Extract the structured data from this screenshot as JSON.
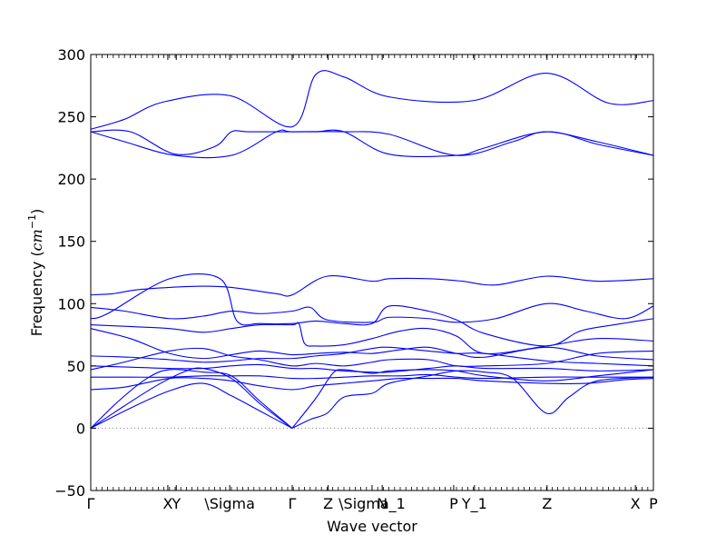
{
  "chart_data": {
    "type": "line",
    "xlabel": "Wave vector",
    "ylabel": "Frequency ($cm^{-1}$)",
    "ylabel_display": {
      "prefix": "Frequency (",
      "math": "cm",
      "sup": "−1",
      "suffix": ")"
    },
    "ylim": [
      -50,
      300
    ],
    "yticks": [
      -50,
      0,
      50,
      100,
      150,
      200,
      250,
      300
    ],
    "xlim": [
      0,
      1
    ],
    "xticks": [
      {
        "label": "Γ",
        "pos": 0.0
      },
      {
        "label": "X",
        "pos": 0.137
      },
      {
        "label": "Y",
        "pos": 0.152
      },
      {
        "label": "\\Sigma",
        "pos": 0.247
      },
      {
        "label": "Γ",
        "pos": 0.358
      },
      {
        "label": "Z",
        "pos": 0.422
      },
      {
        "label": "\\Sigma_1",
        "pos": 0.5
      },
      {
        "label": "N",
        "pos": 0.518
      },
      {
        "label": "P",
        "pos": 0.645
      },
      {
        "label": "Y_1",
        "pos": 0.682
      },
      {
        "label": "Z",
        "pos": 0.811
      },
      {
        "label": "X",
        "pos": 0.968
      },
      {
        "label": "P",
        "pos": 1.0
      }
    ],
    "grid": false,
    "legend": "none",
    "colors": {
      "bands": "#0000ff",
      "zero_line": "#808080"
    },
    "series": [
      {
        "x": [
          0,
          0.06,
          0.13,
          0.247,
          0.358,
          0.4,
          0.45,
          0.53,
          0.68,
          0.81,
          0.92,
          1.0
        ],
        "values": [
          240,
          248,
          262,
          267,
          242,
          284,
          282,
          266,
          263,
          285,
          261,
          263
        ]
      },
      {
        "x": [
          0,
          0.06,
          0.15,
          0.25,
          0.33,
          0.358,
          0.45,
          0.53,
          0.65,
          0.75,
          0.81,
          0.9,
          1.0
        ],
        "values": [
          238,
          230,
          219,
          219,
          238,
          238,
          238,
          236,
          219,
          230,
          238,
          230,
          219
        ]
      },
      {
        "x": [
          0,
          0.07,
          0.15,
          0.22,
          0.25,
          0.28,
          0.358,
          0.4,
          0.45,
          0.53,
          0.65,
          0.7,
          0.81,
          0.9,
          1.0
        ],
        "values": [
          238,
          238,
          220,
          226,
          238,
          238,
          238,
          238,
          238,
          220,
          219,
          225,
          238,
          228,
          219
        ]
      },
      {
        "x": [
          0,
          0.04,
          0.08,
          0.14,
          0.2,
          0.25,
          0.33,
          0.358,
          0.42,
          0.5,
          0.53,
          0.6,
          0.66,
          0.72,
          0.81,
          0.9,
          1.0
        ],
        "values": [
          107,
          108,
          111,
          113,
          114,
          113,
          108,
          107,
          122,
          118,
          120,
          120,
          118,
          115,
          122,
          118,
          120
        ]
      },
      {
        "x": [
          0,
          0.06,
          0.14,
          0.2,
          0.25,
          0.3,
          0.358,
          0.39,
          0.42,
          0.5,
          0.53,
          0.6,
          0.65,
          0.72,
          0.81,
          0.88,
          0.95,
          1.0
        ],
        "values": [
          97,
          94,
          88,
          90,
          94,
          92,
          94,
          97,
          87,
          85,
          89,
          88,
          85,
          88,
          100,
          94,
          88,
          98
        ]
      },
      {
        "x": [
          0,
          0.03,
          0.14,
          0.23,
          0.26,
          0.3,
          0.358,
          0.4,
          0.45,
          0.5,
          0.53,
          0.6,
          0.65,
          0.7,
          0.81,
          0.87,
          0.93,
          1.0
        ],
        "values": [
          88,
          92,
          120,
          120,
          86,
          84,
          84,
          86,
          84,
          84,
          98,
          94,
          87,
          76,
          66,
          78,
          83,
          88
        ]
      },
      {
        "x": [
          0,
          0.05,
          0.14,
          0.2,
          0.25,
          0.3,
          0.358,
          0.37,
          0.38,
          0.4,
          0.45,
          0.5,
          0.55,
          0.6,
          0.65,
          0.7,
          0.81,
          0.9,
          1.0
        ],
        "values": [
          83,
          82,
          80,
          77,
          80,
          83,
          83,
          84,
          68,
          66,
          67,
          72,
          78,
          80,
          74,
          60,
          66,
          72,
          70
        ]
      },
      {
        "x": [
          0,
          0.07,
          0.14,
          0.2,
          0.25,
          0.3,
          0.358,
          0.4,
          0.45,
          0.5,
          0.55,
          0.6,
          0.65,
          0.7,
          0.81,
          0.9,
          1.0
        ],
        "values": [
          80,
          72,
          60,
          56,
          59,
          62,
          59,
          60,
          61,
          60,
          63,
          65,
          60,
          57,
          65,
          58,
          55
        ]
      },
      {
        "x": [
          0,
          0.07,
          0.14,
          0.2,
          0.25,
          0.3,
          0.358,
          0.4,
          0.45,
          0.5,
          0.53,
          0.6,
          0.65,
          0.7,
          0.81,
          0.9,
          1.0
        ],
        "values": [
          58,
          57,
          55,
          53,
          54,
          56,
          56,
          58,
          60,
          64,
          65,
          62,
          60,
          60,
          54,
          52,
          50
        ]
      },
      {
        "x": [
          0,
          0.05,
          0.14,
          0.2,
          0.25,
          0.3,
          0.358,
          0.4,
          0.45,
          0.5,
          0.53,
          0.6,
          0.65,
          0.7,
          0.81,
          0.9,
          1.0
        ],
        "values": [
          47,
          52,
          62,
          64,
          58,
          55,
          50,
          52,
          50,
          53,
          55,
          55,
          50,
          50,
          52,
          60,
          62
        ]
      },
      {
        "x": [
          0,
          0.07,
          0.14,
          0.2,
          0.25,
          0.3,
          0.358,
          0.4,
          0.45,
          0.5,
          0.53,
          0.6,
          0.65,
          0.7,
          0.81,
          0.9,
          1.0
        ],
        "values": [
          50,
          49,
          48,
          48,
          50,
          51,
          48,
          48,
          46,
          45,
          45,
          48,
          50,
          48,
          48,
          46,
          47
        ]
      },
      {
        "x": [
          0,
          0.07,
          0.14,
          0.2,
          0.25,
          0.3,
          0.358,
          0.4,
          0.45,
          0.5,
          0.55,
          0.6,
          0.65,
          0.7,
          0.81,
          0.9,
          1.0
        ],
        "values": [
          41,
          41,
          41,
          42,
          42,
          42,
          40,
          40,
          41,
          42,
          42,
          43,
          41,
          40,
          41,
          41,
          41
        ]
      },
      {
        "x": [
          0,
          0.06,
          0.14,
          0.2,
          0.25,
          0.3,
          0.358,
          0.4,
          0.45,
          0.5,
          0.55,
          0.6,
          0.65,
          0.7,
          0.81,
          0.88,
          0.95,
          1.0
        ],
        "values": [
          31,
          33,
          40,
          40,
          38,
          34,
          31,
          34,
          36,
          38,
          40,
          40,
          40,
          38,
          36,
          36,
          39,
          40
        ]
      },
      {
        "x": [
          0,
          0.05,
          0.1,
          0.14,
          0.2,
          0.25,
          0.3,
          0.358
        ],
        "values": [
          0,
          22,
          40,
          47,
          45,
          42,
          22,
          0
        ]
      },
      {
        "x": [
          0,
          0.06,
          0.12,
          0.17,
          0.2,
          0.25,
          0.3,
          0.358
        ],
        "values": [
          0,
          18,
          35,
          46,
          48,
          40,
          20,
          0
        ]
      },
      {
        "x": [
          0,
          0.07,
          0.14,
          0.2,
          0.25,
          0.3,
          0.358
        ],
        "values": [
          0,
          16,
          30,
          36,
          26,
          14,
          0
        ]
      },
      {
        "x": [
          0.358,
          0.39,
          0.42,
          0.45,
          0.5,
          0.53,
          0.6,
          0.65,
          0.7,
          0.75,
          0.81,
          0.85,
          0.9,
          1.0
        ],
        "values": [
          0,
          7,
          12,
          25,
          28,
          36,
          42,
          46,
          45,
          40,
          12,
          25,
          38,
          41
        ]
      },
      {
        "x": [
          0.358,
          0.4,
          0.43,
          0.45,
          0.5,
          0.53,
          0.6,
          0.65,
          0.7,
          0.81,
          0.9,
          1.0
        ],
        "values": [
          0,
          24,
          44,
          47,
          44,
          46,
          47,
          46,
          42,
          38,
          42,
          47
        ]
      }
    ]
  }
}
